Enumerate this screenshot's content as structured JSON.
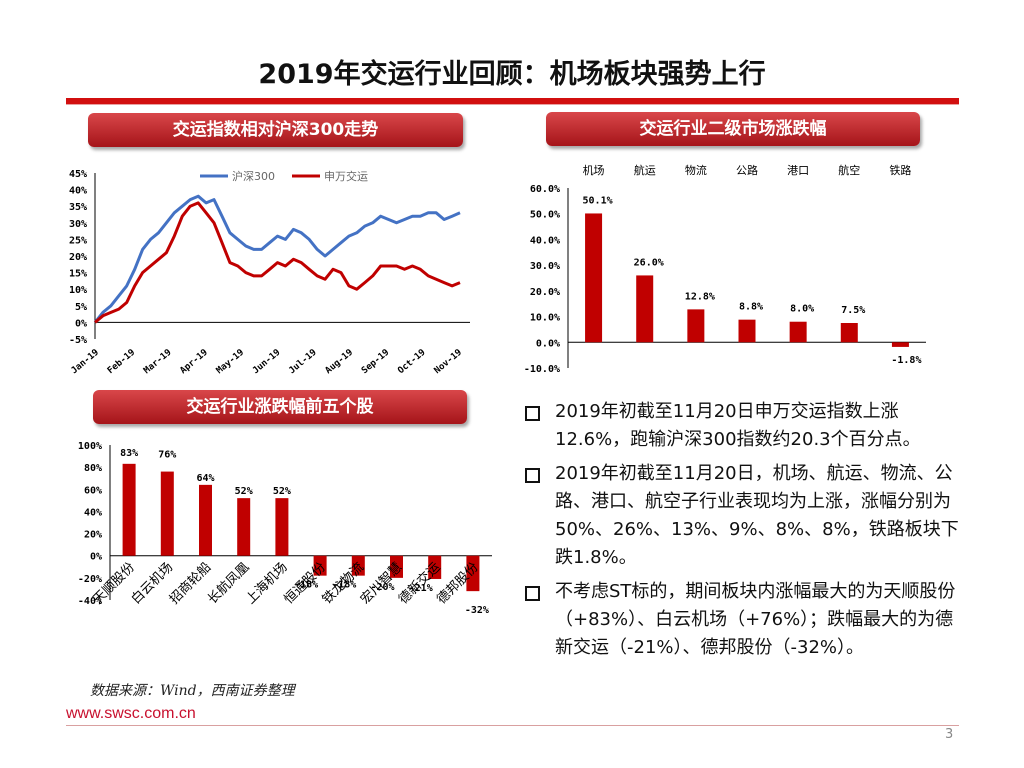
{
  "title": "2019年交运行业回顾：机场板块强势上行",
  "banners": {
    "chart1": "交运指数相对沪深300走势",
    "chart2": "交运行业二级市场涨跌幅",
    "chart3": "交运行业涨跌幅前五个股"
  },
  "colors": {
    "blue": "#4472c4",
    "red": "#c00000",
    "bar": "#c00000"
  },
  "chart_data": [
    {
      "type": "line",
      "title": "交运指数相对沪深300走势",
      "ylim": [
        -5,
        45
      ],
      "yticks": [
        "-5%",
        "0%",
        "5%",
        "10%",
        "15%",
        "20%",
        "25%",
        "30%",
        "35%",
        "40%",
        "45%"
      ],
      "xticks": [
        "Jan-19",
        "Feb-19",
        "Mar-19",
        "Apr-19",
        "May-19",
        "Jun-19",
        "Jul-19",
        "Aug-19",
        "Sep-19",
        "Oct-19",
        "Nov-19"
      ],
      "legend": [
        "沪深300",
        "申万交运"
      ],
      "series": [
        {
          "name": "沪深300",
          "values": [
            0,
            3,
            5,
            8,
            11,
            16,
            22,
            25,
            27,
            30,
            33,
            35,
            37,
            38,
            36,
            37,
            32,
            27,
            25,
            23,
            22,
            22,
            24,
            26,
            25,
            28,
            27,
            25,
            22,
            20,
            22,
            24,
            26,
            27,
            29,
            30,
            32,
            31,
            30,
            31,
            32,
            32,
            33,
            33,
            31,
            32,
            33
          ]
        },
        {
          "name": "申万交运",
          "values": [
            0,
            2,
            3,
            4,
            6,
            11,
            15,
            17,
            19,
            21,
            26,
            32,
            35,
            36,
            33,
            30,
            24,
            18,
            17,
            15,
            14,
            14,
            16,
            18,
            17,
            19,
            18,
            16,
            14,
            13,
            16,
            15,
            11,
            10,
            12,
            14,
            17,
            17,
            17,
            16,
            17,
            16,
            14,
            13,
            12,
            11,
            12
          ]
        }
      ]
    },
    {
      "type": "bar",
      "title": "交运行业二级市场涨跌幅",
      "categories": [
        "机场",
        "航运",
        "物流",
        "公路",
        "港口",
        "航空",
        "铁路"
      ],
      "values": [
        50.1,
        26.0,
        12.8,
        8.8,
        8.0,
        7.5,
        -1.8
      ],
      "labels": [
        "50.1%",
        "26.0%",
        "12.8%",
        "8.8%",
        "8.0%",
        "7.5%",
        "-1.8%"
      ],
      "ylim": [
        -10,
        60
      ],
      "yticks": [
        "-10.0%",
        "0.0%",
        "10.0%",
        "20.0%",
        "30.0%",
        "40.0%",
        "50.0%",
        "60.0%"
      ]
    },
    {
      "type": "bar",
      "title": "交运行业涨跌幅前五个股",
      "categories": [
        "天顺股份",
        "白云机场",
        "招商轮船",
        "长航凤凰",
        "上海机场",
        "恒通股份",
        "铁龙物流",
        "宏川智慧",
        "德新交运",
        "德邦股份"
      ],
      "values": [
        83,
        76,
        64,
        52,
        52,
        -18,
        -18,
        -20,
        -21,
        -32
      ],
      "labels": [
        "83%",
        "76%",
        "64%",
        "52%",
        "52%",
        "-18%",
        "-18%",
        "-20%",
        "-21%",
        "-32%"
      ],
      "ylim": [
        -40,
        100
      ],
      "yticks": [
        "-40%",
        "-20%",
        "0%",
        "20%",
        "40%",
        "60%",
        "80%",
        "100%"
      ]
    }
  ],
  "bullets": [
    "2019年初截至11月20日申万交运指数上涨12.6%，跑输沪深300指数约20.3个百分点。",
    "2019年初截至11月20日，机场、航运、物流、公路、港口、航空子行业表现均为上涨，涨幅分别为50%、26%、13%、9%、8%、8%，铁路板块下跌1.8%。",
    "不考虑ST标的，期间板块内涨幅最大的为天顺股份（+83%）、白云机场（+76%）；跌幅最大的为德新交运（-21%）、德邦股份（-32%）。"
  ],
  "source": "数据来源：Wind，西南证券整理",
  "website": "www.swsc.com.cn",
  "page_number": "3"
}
